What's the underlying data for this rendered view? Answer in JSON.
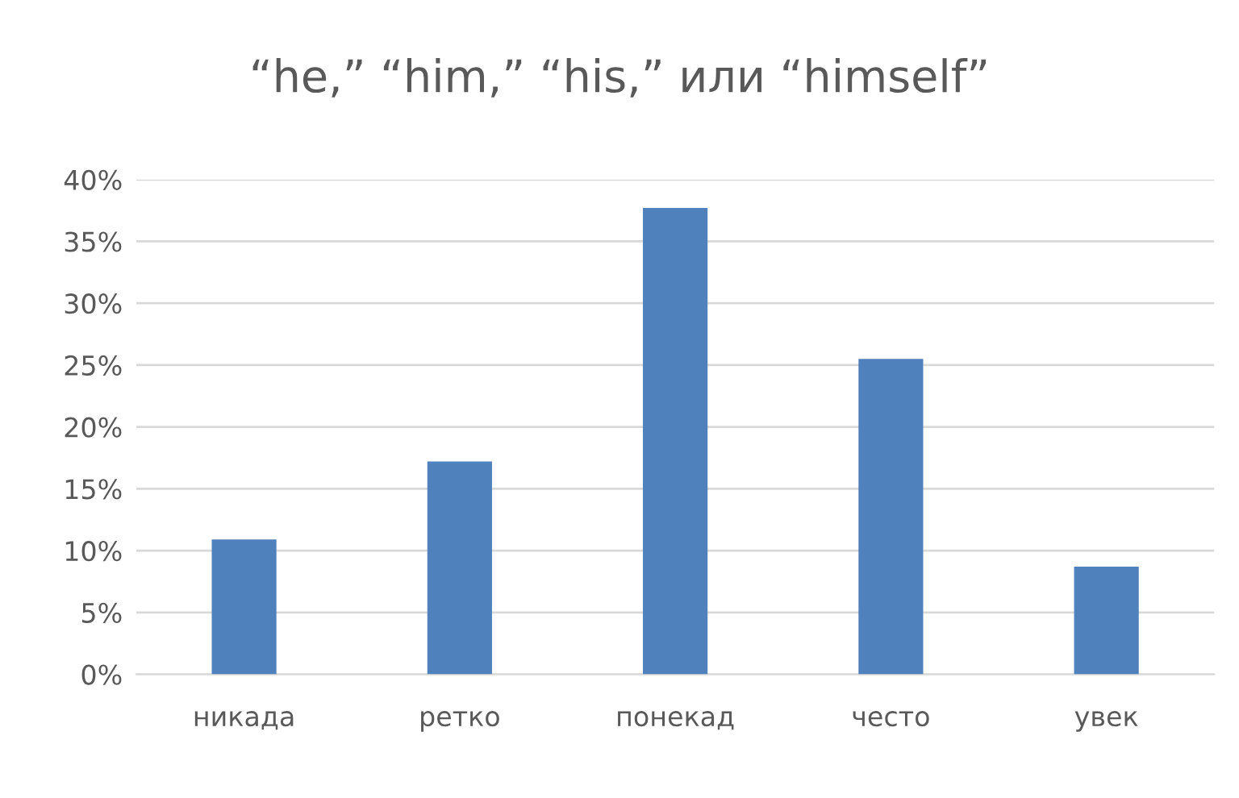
{
  "chart_data": {
    "type": "bar",
    "title": "“he,” “him,” “his,” или “himself”",
    "categories": [
      "никада",
      "ретко",
      "понекад",
      "често",
      "увек"
    ],
    "values": [
      10.9,
      17.2,
      37.7,
      25.5,
      8.7
    ],
    "color": "#4f81bd",
    "ylim": [
      0,
      40
    ],
    "yticks": [
      {
        "value": 0,
        "label": "0%"
      },
      {
        "value": 5,
        "label": "5%"
      },
      {
        "value": 10,
        "label": "10%"
      },
      {
        "value": 15,
        "label": "15%"
      },
      {
        "value": 20,
        "label": "20%"
      },
      {
        "value": 25,
        "label": "25%"
      },
      {
        "value": 30,
        "label": "30%"
      },
      {
        "value": 35,
        "label": "35%"
      },
      {
        "value": 40,
        "label": "40%"
      }
    ],
    "grid": "y"
  }
}
